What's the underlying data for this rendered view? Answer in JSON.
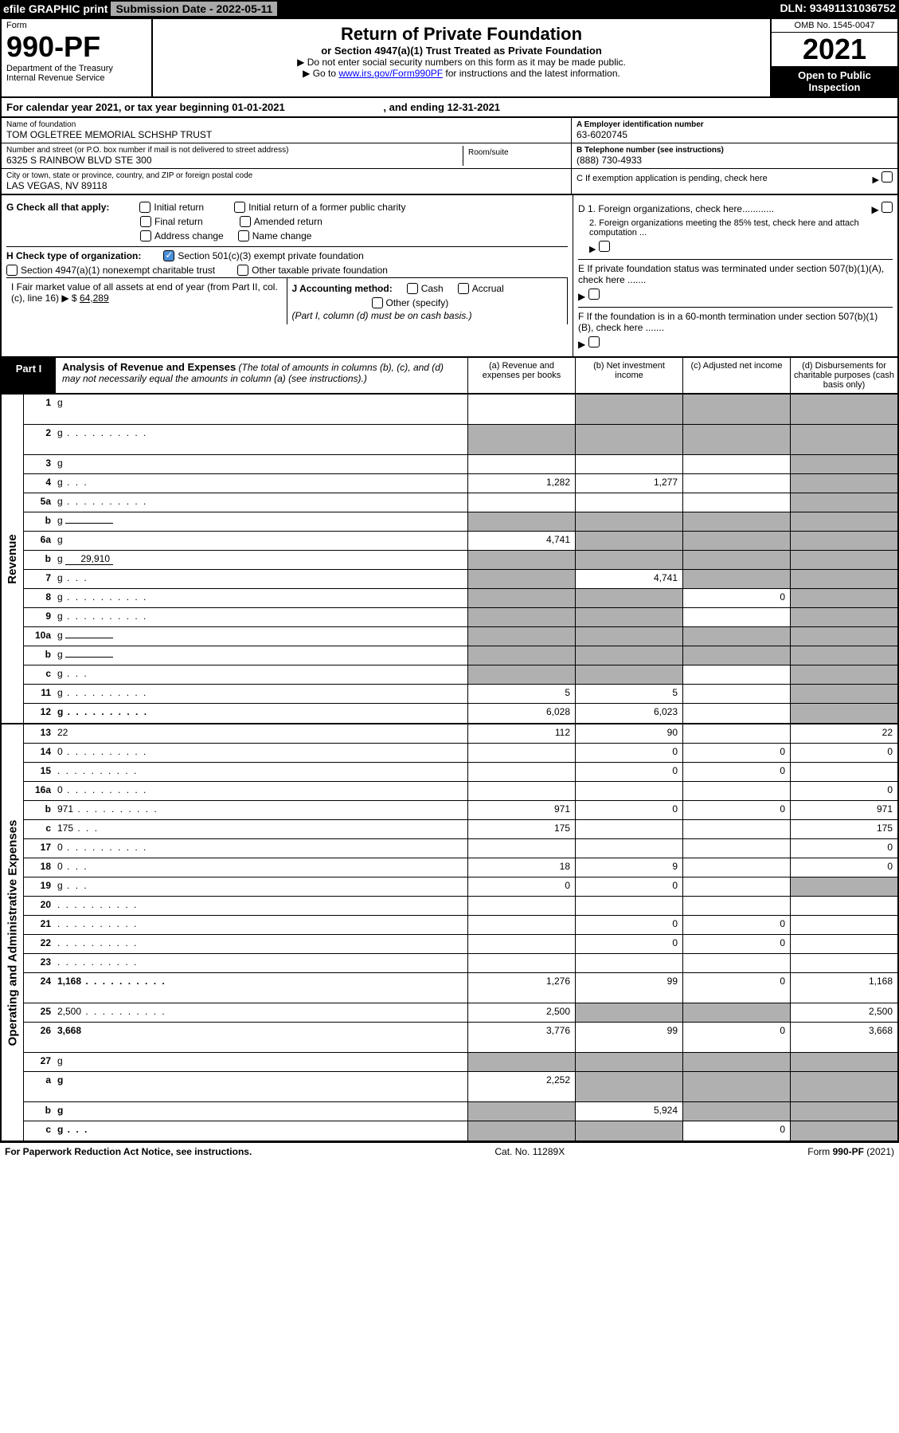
{
  "topbar": {
    "efile": "efile GRAPHIC print",
    "sub_label": "Submission Date - 2022-05-11",
    "dln": "DLN: 93491131036752"
  },
  "header": {
    "form_label": "Form",
    "form_num": "990-PF",
    "dept": "Department of the Treasury",
    "irs": "Internal Revenue Service",
    "title": "Return of Private Foundation",
    "subtitle": "or Section 4947(a)(1) Trust Treated as Private Foundation",
    "instr1": "▶ Do not enter social security numbers on this form as it may be made public.",
    "instr2_pre": "▶ Go to ",
    "instr2_link": "www.irs.gov/Form990PF",
    "instr2_post": " for instructions and the latest information.",
    "omb": "OMB No. 1545-0047",
    "year": "2021",
    "open": "Open to Public Inspection"
  },
  "cal": {
    "text_pre": "For calendar year 2021, or tax year beginning ",
    "begin": "01-01-2021",
    "text_mid": " , and ending ",
    "end": "12-31-2021"
  },
  "info": {
    "name_hdr": "Name of foundation",
    "name": "TOM OGLETREE MEMORIAL SCHSHP TRUST",
    "addr_hdr": "Number and street (or P.O. box number if mail is not delivered to street address)",
    "addr": "6325 S RAINBOW BLVD STE 300",
    "room_hdr": "Room/suite",
    "city_hdr": "City or town, state or province, country, and ZIP or foreign postal code",
    "city": "LAS VEGAS, NV  89118",
    "ein_hdr": "A Employer identification number",
    "ein": "63-6020745",
    "phone_hdr": "B Telephone number (see instructions)",
    "phone": "(888) 730-4933",
    "c_label": "C If exemption application is pending, check here"
  },
  "checks": {
    "g_label": "G Check all that apply:",
    "g1": "Initial return",
    "g2": "Initial return of a former public charity",
    "g3": "Final return",
    "g4": "Amended return",
    "g5": "Address change",
    "g6": "Name change",
    "h_label": "H Check type of organization:",
    "h1": "Section 501(c)(3) exempt private foundation",
    "h2": "Section 4947(a)(1) nonexempt charitable trust",
    "h3": "Other taxable private foundation",
    "i_label": "I Fair market value of all assets at end of year (from Part II, col. (c), line 16) ▶ $",
    "i_val": "64,289",
    "j_label": "J Accounting method:",
    "j1": "Cash",
    "j2": "Accrual",
    "j3": "Other (specify)",
    "j_note": "(Part I, column (d) must be on cash basis.)",
    "d1": "D 1. Foreign organizations, check here............",
    "d2": "2. Foreign organizations meeting the 85% test, check here and attach computation ...",
    "e": "E  If private foundation status was terminated under section 507(b)(1)(A), check here .......",
    "f": "F  If the foundation is in a 60-month termination under section 507(b)(1)(B), check here ......."
  },
  "part1": {
    "label": "Part I",
    "title": "Analysis of Revenue and Expenses",
    "note": " (The total of amounts in columns (b), (c), and (d) may not necessarily equal the amounts in column (a) (see instructions).)",
    "col_a": "(a) Revenue and expenses per books",
    "col_b": "(b) Net investment income",
    "col_c": "(c) Adjusted net income",
    "col_d": "(d) Disbursements for charitable purposes (cash basis only)"
  },
  "sides": {
    "rev": "Revenue",
    "exp": "Operating and Administrative Expenses"
  },
  "rows": [
    {
      "n": "1",
      "d": "g",
      "a": "",
      "b": "g",
      "c": "g",
      "tall": true
    },
    {
      "n": "2",
      "d": "g",
      "a": "g",
      "b": "g",
      "c": "g",
      "tall": true,
      "dots": true
    },
    {
      "n": "3",
      "d": "g",
      "a": "",
      "b": "",
      "c": ""
    },
    {
      "n": "4",
      "d": "g",
      "a": "1,282",
      "b": "1,277",
      "c": "",
      "dots": "s"
    },
    {
      "n": "5a",
      "d": "g",
      "a": "",
      "b": "",
      "c": "",
      "dots": true
    },
    {
      "n": "b",
      "d": "g",
      "a": "g",
      "b": "g",
      "c": "g",
      "fill": ""
    },
    {
      "n": "6a",
      "d": "g",
      "a": "4,741",
      "b": "g",
      "c": "g"
    },
    {
      "n": "b",
      "d": "g",
      "a": "g",
      "b": "g",
      "c": "g",
      "fill": "29,910"
    },
    {
      "n": "7",
      "d": "g",
      "a": "g",
      "b": "4,741",
      "c": "g",
      "dots": "s"
    },
    {
      "n": "8",
      "d": "g",
      "a": "g",
      "b": "g",
      "c": "0",
      "dots": true
    },
    {
      "n": "9",
      "d": "g",
      "a": "g",
      "b": "g",
      "c": "",
      "dots": true
    },
    {
      "n": "10a",
      "d": "g",
      "a": "g",
      "b": "g",
      "c": "g",
      "fill": ""
    },
    {
      "n": "b",
      "d": "g",
      "a": "g",
      "b": "g",
      "c": "g",
      "fill": "",
      "dots": "s"
    },
    {
      "n": "c",
      "d": "g",
      "a": "g",
      "b": "g",
      "c": "",
      "dots": "s"
    },
    {
      "n": "11",
      "d": "g",
      "a": "5",
      "b": "5",
      "c": "",
      "dots": true
    },
    {
      "n": "12",
      "d": "g",
      "a": "6,028",
      "b": "6,023",
      "c": "",
      "bold": true,
      "dots": true
    }
  ],
  "exp_rows": [
    {
      "n": "13",
      "d": "22",
      "a": "112",
      "b": "90",
      "c": ""
    },
    {
      "n": "14",
      "d": "0",
      "a": "",
      "b": "0",
      "c": "0",
      "dots": true
    },
    {
      "n": "15",
      "d": "",
      "a": "",
      "b": "0",
      "c": "0",
      "dots": true
    },
    {
      "n": "16a",
      "d": "0",
      "a": "",
      "b": "",
      "c": "",
      "dots": true
    },
    {
      "n": "b",
      "d": "971",
      "a": "971",
      "b": "0",
      "c": "0",
      "dots": true
    },
    {
      "n": "c",
      "d": "175",
      "a": "175",
      "b": "",
      "c": "",
      "dots": "s"
    },
    {
      "n": "17",
      "d": "0",
      "a": "",
      "b": "",
      "c": "",
      "dots": true
    },
    {
      "n": "18",
      "d": "0",
      "a": "18",
      "b": "9",
      "c": "",
      "dots": "s"
    },
    {
      "n": "19",
      "d": "g",
      "a": "0",
      "b": "0",
      "c": "",
      "dots": "s"
    },
    {
      "n": "20",
      "d": "",
      "a": "",
      "b": "",
      "c": "",
      "dots": true
    },
    {
      "n": "21",
      "d": "",
      "a": "",
      "b": "0",
      "c": "0",
      "dots": true
    },
    {
      "n": "22",
      "d": "",
      "a": "",
      "b": "0",
      "c": "0",
      "dots": true
    },
    {
      "n": "23",
      "d": "",
      "a": "",
      "b": "",
      "c": "",
      "dots": true
    },
    {
      "n": "24",
      "d": "1,168",
      "a": "1,276",
      "b": "99",
      "c": "0",
      "bold": true,
      "tall": true,
      "dots": true
    },
    {
      "n": "25",
      "d": "2,500",
      "a": "2,500",
      "b": "g",
      "c": "g",
      "dots": true
    },
    {
      "n": "26",
      "d": "3,668",
      "a": "3,776",
      "b": "99",
      "c": "0",
      "bold": true,
      "tall": true
    },
    {
      "n": "27",
      "d": "g",
      "a": "g",
      "b": "g",
      "c": "g"
    },
    {
      "n": "a",
      "d": "g",
      "a": "2,252",
      "b": "g",
      "c": "g",
      "bold": true,
      "tall": true
    },
    {
      "n": "b",
      "d": "g",
      "a": "g",
      "b": "5,924",
      "c": "g",
      "bold": true
    },
    {
      "n": "c",
      "d": "g",
      "a": "g",
      "b": "g",
      "c": "0",
      "bold": true,
      "dots": "s"
    }
  ],
  "footer": {
    "left": "For Paperwork Reduction Act Notice, see instructions.",
    "mid": "Cat. No. 11289X",
    "right": "Form 990-PF (2021)"
  }
}
